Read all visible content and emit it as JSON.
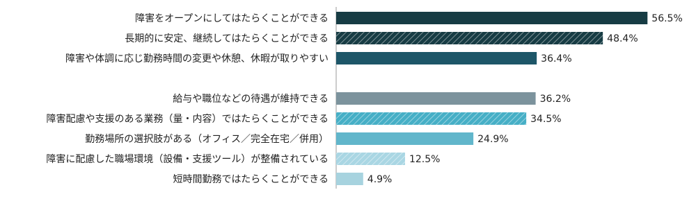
{
  "chart_data": {
    "type": "bar",
    "orientation": "horizontal",
    "categories": [
      "障害をオープンにしてはたらくことができる",
      "長期的に安定、継続してはたらくことができる",
      "障害や体調に応じ勤務時間の変更や休憩、休暇が取りやすい",
      null,
      "給与や職位などの待遇が維持できる",
      "障害配慮や支援のある業務（量・内容）ではたらくことができる",
      "勤務場所の選択肢がある（オフィス／完全在宅／併用）",
      "障害に配慮した職場環境（設備・支援ツール）が整備されている",
      "短時間勤務ではたらくことができる"
    ],
    "values": [
      56.5,
      48.4,
      36.4,
      null,
      36.2,
      34.5,
      24.9,
      12.5,
      4.9
    ],
    "value_labels": [
      "56.5%",
      "48.4%",
      "36.4%",
      null,
      "36.2%",
      "34.5%",
      "24.9%",
      "12.5%",
      "4.9%"
    ],
    "colors": [
      "#173c44",
      "#173c44",
      "#1d5668",
      null,
      "#7c939d",
      "#46afc6",
      "#61b6cb",
      "#a9d6e3",
      "#a7d3df"
    ],
    "hatch": [
      false,
      true,
      false,
      null,
      false,
      true,
      false,
      true,
      false
    ],
    "xlim": [
      0,
      60
    ]
  }
}
